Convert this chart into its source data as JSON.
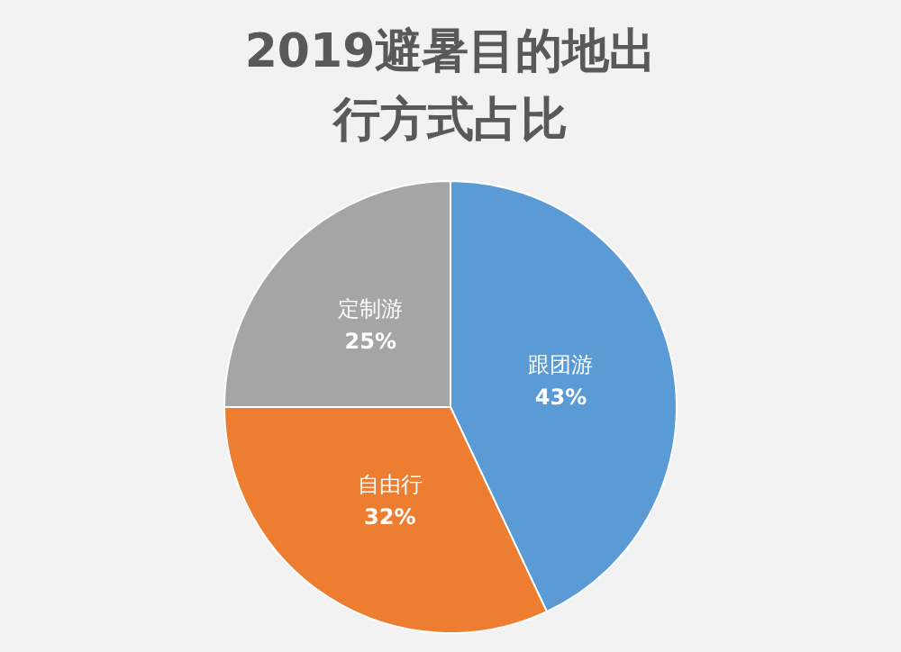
{
  "chart_data": {
    "type": "pie",
    "title": "2019避暑目的地出行方式占比",
    "categories": [
      "跟团游",
      "自由行",
      "定制游"
    ],
    "values": [
      43,
      32,
      25
    ],
    "value_labels": [
      "43%",
      "32%",
      "25%"
    ],
    "colors": [
      "#5b9bd5",
      "#ed7d31",
      "#a5a5a5"
    ],
    "legend": false
  }
}
